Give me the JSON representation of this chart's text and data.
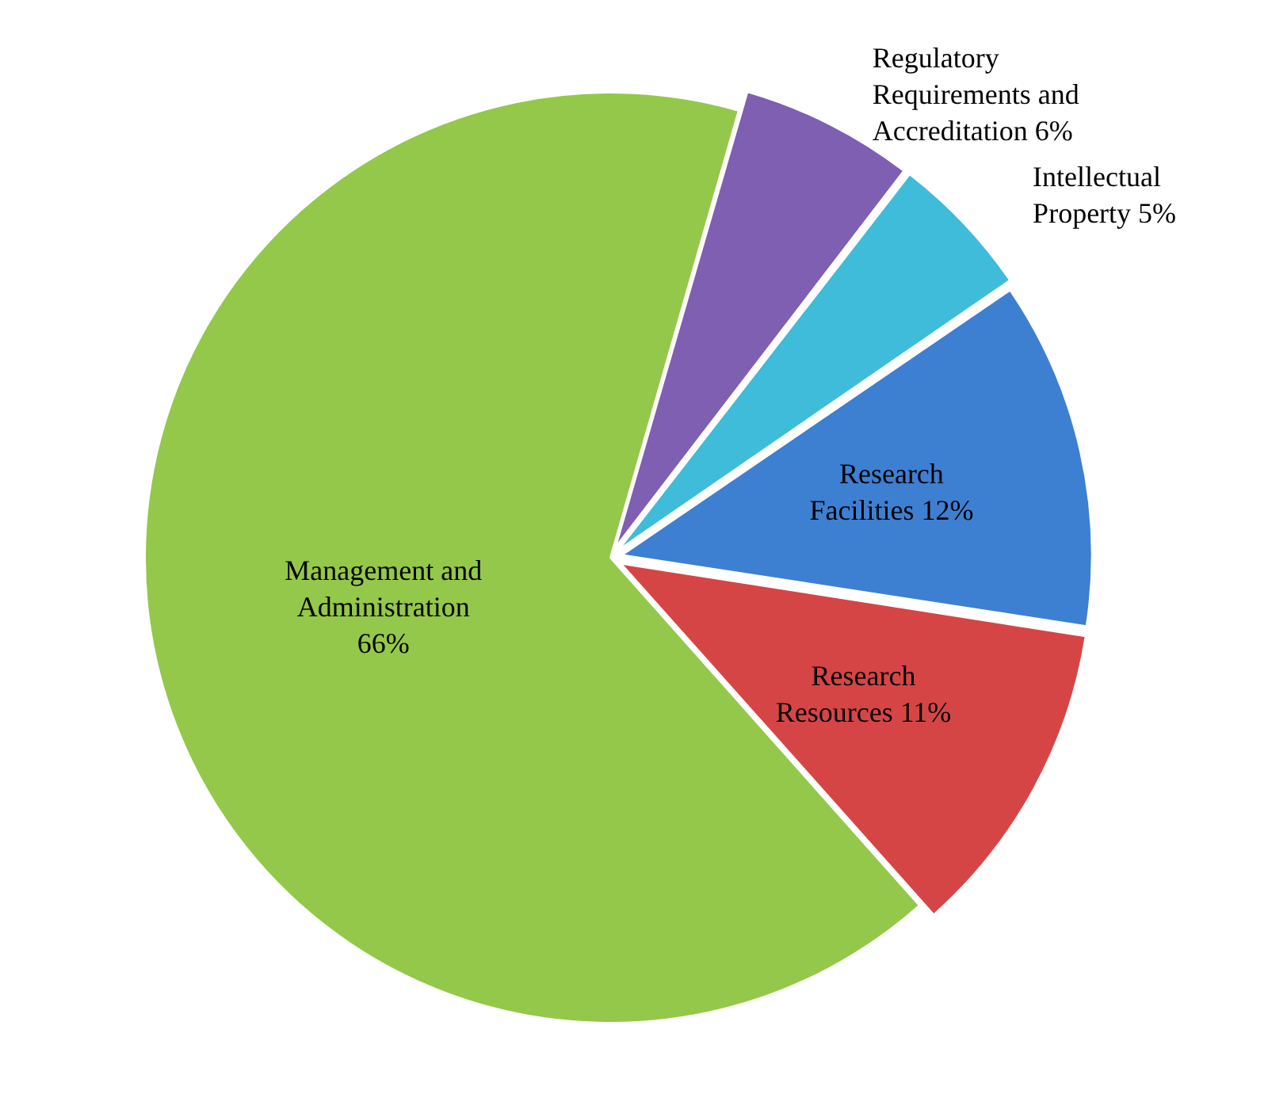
{
  "chart_data": {
    "type": "pie",
    "categories": [
      "Regulatory Requirements and Accreditation",
      "Intellectual Property",
      "Research Facilities",
      "Research Resources",
      "Management and Administration"
    ],
    "values": [
      6,
      5,
      12,
      11,
      66
    ],
    "value_labels": [
      "6%",
      "5%",
      "12%",
      "11%",
      "66%"
    ],
    "colors": [
      "#7e5fb2",
      "#3ebcd9",
      "#3d7fd1",
      "#d64545",
      "#94c84a"
    ],
    "legend": false
  }
}
